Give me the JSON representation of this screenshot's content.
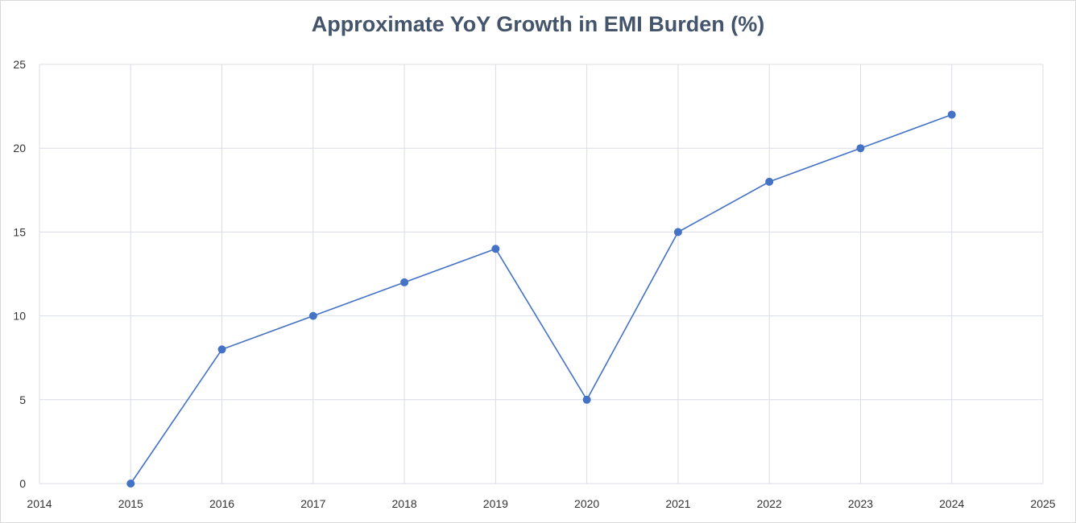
{
  "chart_data": {
    "type": "scatter",
    "title": "Approximate YoY Growth in EMI Burden (%)",
    "xlabel": "",
    "ylabel": "",
    "xlim": [
      2014,
      2025
    ],
    "ylim": [
      0,
      25
    ],
    "x_ticks": [
      "2014",
      "2015",
      "2016",
      "2017",
      "2018",
      "2019",
      "2020",
      "2021",
      "2022",
      "2023",
      "2024",
      "2025"
    ],
    "y_ticks": [
      "0",
      "5",
      "10",
      "15",
      "20",
      "25"
    ],
    "grid": true,
    "legend": "none",
    "series": [
      {
        "color": "#4472c4",
        "x": [
          2015,
          2016,
          2017,
          2018,
          2019,
          2020,
          2021,
          2022,
          2023,
          2024
        ],
        "y": [
          0,
          8,
          10,
          12,
          14,
          5,
          15,
          18,
          20,
          22
        ]
      }
    ],
    "gridline_color": "#d9dde6"
  }
}
